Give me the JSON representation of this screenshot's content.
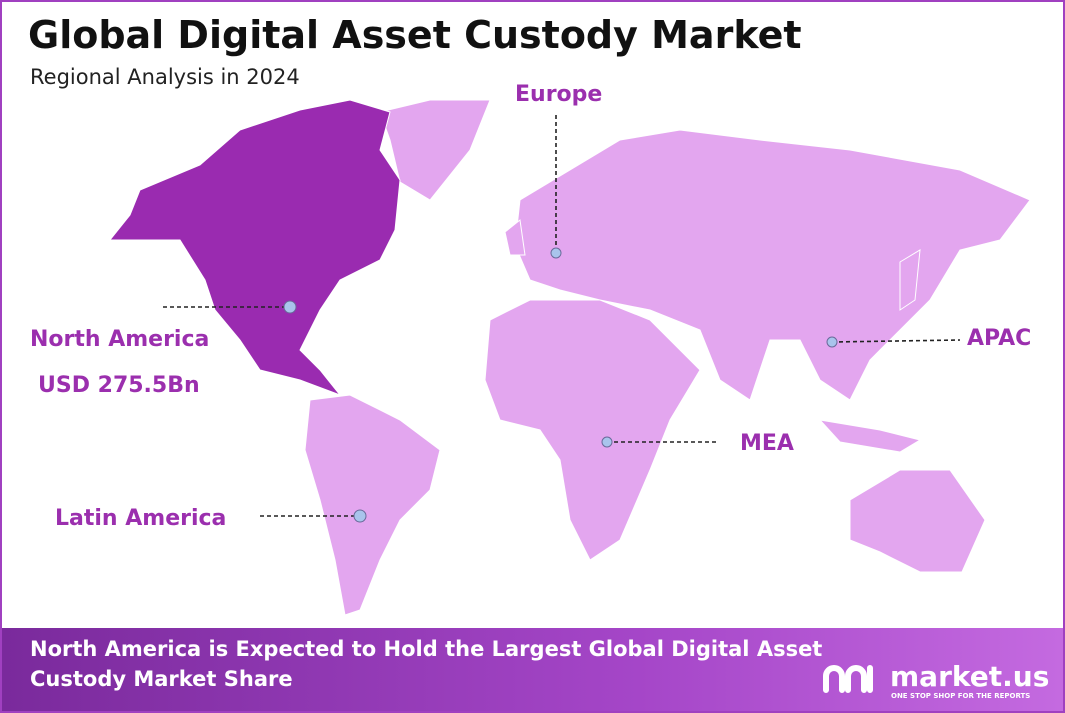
{
  "header": {
    "title": "Global Digital Asset Custody Market",
    "subtitle": "Regional Analysis in 2024"
  },
  "regions": [
    {
      "label": "North America",
      "value": "USD 275.5Bn"
    },
    {
      "label": "Europe"
    },
    {
      "label": "APAC"
    },
    {
      "label": "MEA"
    },
    {
      "label": "Latin America"
    }
  ],
  "footer": {
    "lines": [
      "North America is Expected to Hold the Largest Global Digital Asset",
      "Custody Market Share"
    ]
  },
  "logo": {
    "name": "market.us",
    "tagline": "ONE STOP SHOP FOR THE REPORTS"
  }
}
